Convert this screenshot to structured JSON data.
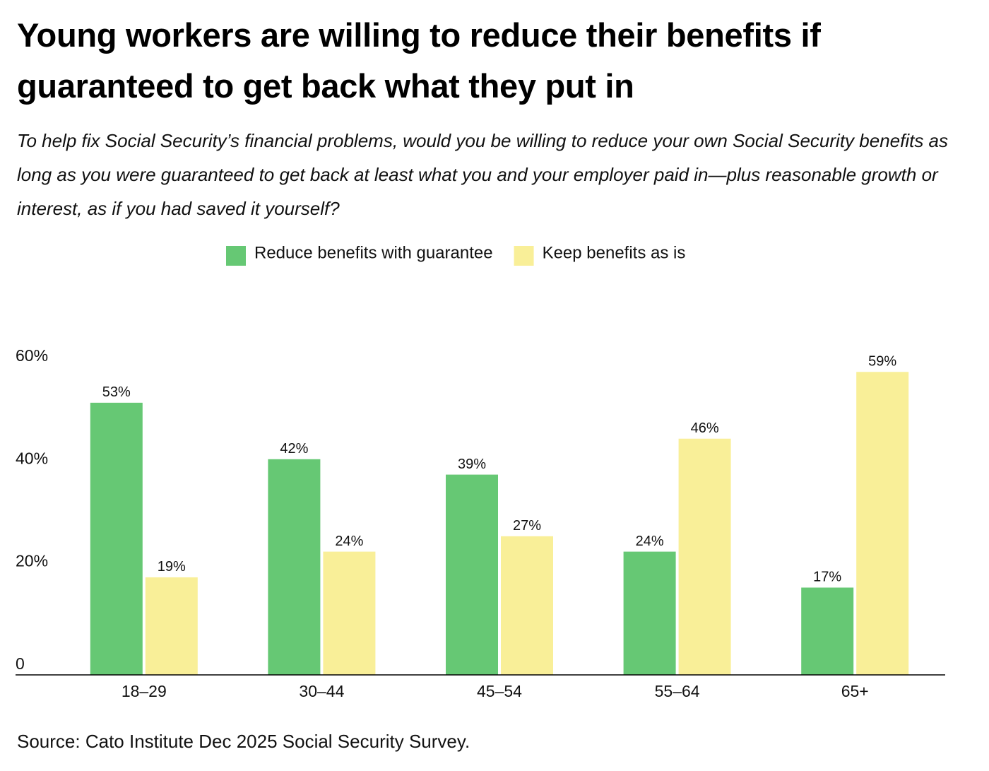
{
  "chart_data": {
    "type": "bar",
    "title": "Young workers are willing to reduce their benefits if guaranteed to get back what they put in",
    "subtitle": "To help fix Social Security’s financial problems, would you be willing to reduce your own Social Security benefits as long as you were guaranteed to get back at least what you and your employer paid in—plus reasonable growth or interest, as if you had saved it yourself?",
    "categories": [
      "18–29",
      "30–44",
      "45–54",
      "55–64",
      "65+"
    ],
    "series": [
      {
        "name": "Reduce benefits with guarantee",
        "color": "#66c874",
        "values": [
          53,
          42,
          39,
          24,
          17
        ],
        "value_labels": [
          "53%",
          "42%",
          "39%",
          "24%",
          "17%"
        ]
      },
      {
        "name": "Keep benefits as is",
        "color": "#f9ef98",
        "values": [
          19,
          24,
          27,
          46,
          59
        ],
        "value_labels": [
          "19%",
          "24%",
          "27%",
          "46%",
          "59%"
        ]
      }
    ],
    "ylim": [
      0,
      60
    ],
    "yticks": [
      0,
      {
        "value": 20,
        "label": "20%"
      },
      {
        "value": 40,
        "label": "40%"
      },
      {
        "value": 60,
        "label": "60%"
      }
    ],
    "legend": "top",
    "source": "Source: Cato Institute Dec 2025 Social Security Survey."
  }
}
